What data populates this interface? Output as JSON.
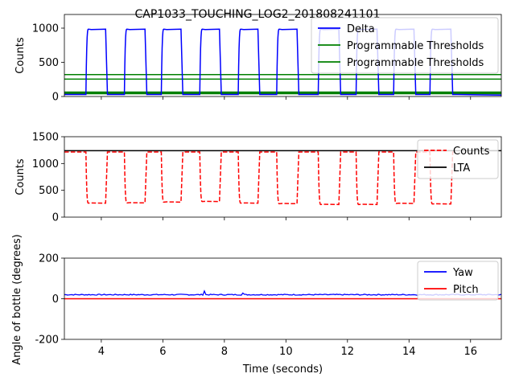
{
  "figure": {
    "title": "CAP1033_TOUCHING_LOG2_201808241101"
  },
  "chart_data": [
    {
      "type": "line",
      "panel": "top",
      "ylabel": "Counts",
      "xlabel": "",
      "xlim": [
        2.8,
        17.0
      ],
      "ylim": [
        0,
        1200
      ],
      "yticks": [
        0,
        500,
        1000
      ],
      "xticks": [
        4,
        6,
        8,
        10,
        12,
        14,
        16
      ],
      "show_xtick_labels": false,
      "grid": false,
      "legend": "top-right",
      "pulses": [
        [
          3.5,
          4.2
        ],
        [
          4.75,
          5.48
        ],
        [
          5.95,
          6.65
        ],
        [
          7.2,
          7.9
        ],
        [
          8.45,
          9.15
        ],
        [
          9.7,
          10.42
        ],
        [
          11.05,
          11.78
        ],
        [
          12.28,
          13.02
        ],
        [
          13.5,
          14.22
        ],
        [
          14.68,
          15.42
        ]
      ],
      "series": [
        {
          "name": "Delta",
          "color": "#0000ff",
          "style": "solid",
          "baseline": 30,
          "plateau": 985,
          "tail": 20
        },
        {
          "name": "Programmable Thresholds",
          "color": "#008000",
          "style": "solid",
          "value": 320
        },
        {
          "name": "Programmable Thresholds",
          "color": "#008000",
          "style": "solid",
          "value": 255
        }
      ],
      "extra_lines": [
        {
          "color": "#008000",
          "value": 60
        },
        {
          "color": "#008000",
          "value": 45
        }
      ]
    },
    {
      "type": "line",
      "panel": "middle",
      "ylabel": "Counts",
      "xlabel": "",
      "xlim": [
        2.8,
        17.0
      ],
      "ylim": [
        0,
        1500
      ],
      "yticks": [
        0,
        500,
        1000,
        1500
      ],
      "xticks": [
        4,
        6,
        8,
        10,
        12,
        14,
        16
      ],
      "show_xtick_labels": false,
      "grid": false,
      "legend": "top-right",
      "pulses": [
        [
          3.5,
          4.2
        ],
        [
          4.75,
          5.48
        ],
        [
          5.95,
          6.65
        ],
        [
          7.2,
          7.9
        ],
        [
          8.45,
          9.15
        ],
        [
          9.7,
          10.42
        ],
        [
          11.05,
          11.78
        ],
        [
          12.28,
          13.02
        ],
        [
          13.5,
          14.22
        ],
        [
          14.68,
          15.42
        ]
      ],
      "dip_levels": [
        260,
        265,
        280,
        290,
        260,
        250,
        235,
        235,
        255,
        245
      ],
      "series": [
        {
          "name": "Counts",
          "color": "#ff0000",
          "style": "dashed",
          "baseline": 1215,
          "x_end": 15.45
        },
        {
          "name": "LTA",
          "color": "#000000",
          "style": "solid",
          "value": 1240
        }
      ]
    },
    {
      "type": "line",
      "panel": "bottom",
      "ylabel": "Angle of bottle (degrees)",
      "xlabel": "Time (seconds)",
      "xlim": [
        2.8,
        17.0
      ],
      "ylim": [
        -200,
        200
      ],
      "yticks": [
        -200,
        0,
        200
      ],
      "xticks": [
        4,
        6,
        8,
        10,
        12,
        14,
        16
      ],
      "show_xtick_labels": true,
      "grid": false,
      "legend": "top-right",
      "series": [
        {
          "name": "Yaw",
          "color": "#0000ff",
          "style": "solid",
          "value": 20,
          "spikes": [
            [
              7.35,
              38
            ],
            [
              8.6,
              28
            ]
          ]
        },
        {
          "name": "Pitch",
          "color": "#ff0000",
          "style": "solid",
          "value": 0
        }
      ]
    }
  ]
}
